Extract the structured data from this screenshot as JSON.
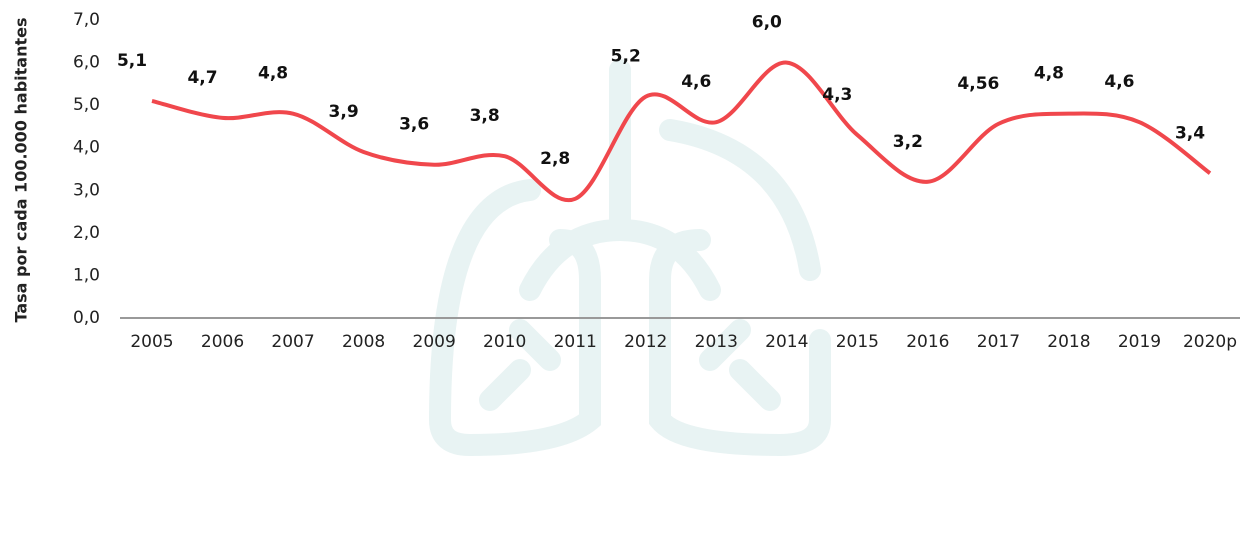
{
  "chart_data": {
    "type": "line",
    "y_label": "Tasa por cada 100.000 habitantes",
    "categories": [
      "2005",
      "2006",
      "2007",
      "2008",
      "2009",
      "2010",
      "2011",
      "2012",
      "2013",
      "2014",
      "2015",
      "2016",
      "2017",
      "2018",
      "2019",
      "2020p"
    ],
    "series": [
      {
        "color": "#f0474c",
        "values": [
          5.1,
          4.7,
          4.8,
          3.9,
          3.6,
          3.8,
          2.8,
          5.2,
          4.6,
          6.0,
          4.3,
          3.2,
          4.56,
          4.8,
          4.6,
          3.4
        ],
        "value_labels": [
          "5,1",
          "4,7",
          "4,8",
          "3,9",
          "3,6",
          "3,8",
          "2,8",
          "5,2",
          "4,6",
          "6,0",
          "4,3",
          "3,2",
          "4,56",
          "4,8",
          "4,6",
          "3,4"
        ]
      }
    ],
    "ylim": [
      0,
      7
    ],
    "yticks": [
      {
        "value": 0,
        "label": "0,0"
      },
      {
        "value": 1,
        "label": "1,0"
      },
      {
        "value": 2,
        "label": "2,0"
      },
      {
        "value": 3,
        "label": "3,0"
      },
      {
        "value": 4,
        "label": "4,0"
      },
      {
        "value": 5,
        "label": "5,0"
      },
      {
        "value": 6,
        "label": "6,0"
      },
      {
        "value": 7,
        "label": "7,0"
      }
    ],
    "grid": false
  }
}
